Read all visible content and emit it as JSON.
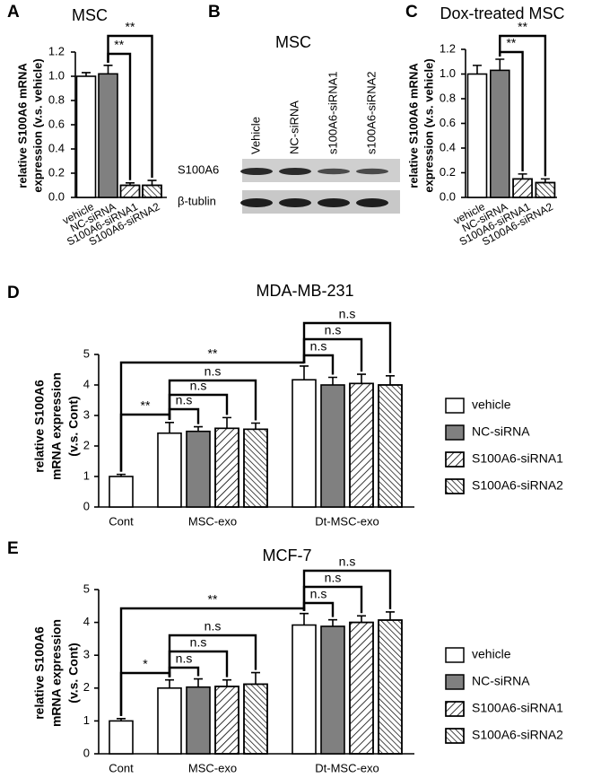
{
  "panel_b": {
    "panel": "B",
    "title": "MSC",
    "lanes": [
      "Vehicle",
      "NC-siRNA",
      "s100A6-siRNA1",
      "s100A6-siRNA2"
    ],
    "rows": [
      "S100A6",
      "β-tublin"
    ]
  },
  "chart_data": [
    {
      "panel": "A",
      "type": "bar",
      "title": "MSC",
      "ylabel": [
        "relative S100A6 mRNA",
        "expression (v.s. vehicle)"
      ],
      "categories": [
        "vehicle",
        "NC-siRNA",
        "S100A6-siRNA1",
        "S100A6-siRNA2"
      ],
      "values": [
        1.0,
        1.02,
        0.1,
        0.1
      ],
      "errors": [
        0.03,
        0.07,
        0.02,
        0.04
      ],
      "colors": [
        "#ffffff",
        "#808080",
        "#ffffff",
        "#ffffff"
      ],
      "hatches": [
        "none",
        "none",
        "forward",
        "backward"
      ],
      "ylim": [
        0,
        1.2
      ],
      "yticks": [
        {
          "value": 0,
          "label": "0.0"
        },
        0.2,
        0.4,
        0.6,
        0.8,
        {
          "value": 1,
          "label": "1.0"
        },
        1.2
      ],
      "annotations": [
        "**",
        "**"
      ]
    },
    {
      "panel": "C",
      "type": "bar",
      "title": "Dox-treated MSC",
      "ylabel": [
        "relative S100A6 mRNA",
        "expression (v.s. vehicle)"
      ],
      "categories": [
        "vehicle",
        "NC-siRNA",
        "S100A6-siRNA1",
        "S100A6-siRNA2"
      ],
      "values": [
        1.0,
        1.03,
        0.15,
        0.12
      ],
      "errors": [
        0.07,
        0.09,
        0.04,
        0.03
      ],
      "colors": [
        "#ffffff",
        "#808080",
        "#ffffff",
        "#ffffff"
      ],
      "hatches": [
        "none",
        "none",
        "forward",
        "backward"
      ],
      "ylim": [
        0,
        1.2
      ],
      "yticks": [
        {
          "value": 0,
          "label": "0.0"
        },
        0.2,
        0.4,
        0.6,
        0.8,
        {
          "value": 1,
          "label": "1.0"
        },
        1.2
      ],
      "annotations": [
        "**",
        "**"
      ]
    },
    {
      "panel": "D",
      "type": "grouped_bar",
      "title": "MDA-MB-231",
      "ylabel": [
        "relative S100A6",
        "mRNA  expression",
        "(v.s. Cont)"
      ],
      "categories": [
        "Cont",
        "MSC-exo",
        "Dt-MSC-exo"
      ],
      "series": [
        {
          "name": "vehicle",
          "color": "#ffffff",
          "hatch": "none",
          "values": [
            1.0,
            2.42,
            4.17
          ],
          "errors": [
            0.07,
            0.35,
            0.45
          ]
        },
        {
          "name": "NC-siRNA",
          "color": "#808080",
          "hatch": "none",
          "values": [
            null,
            2.48,
            4.0
          ],
          "errors": [
            null,
            0.15,
            0.25
          ]
        },
        {
          "name": "S100A6-siRNA1",
          "color": "#ffffff",
          "hatch": "forward",
          "values": [
            null,
            2.58,
            4.05
          ],
          "errors": [
            null,
            0.35,
            0.3
          ]
        },
        {
          "name": "S100A6-siRNA2",
          "color": "#ffffff",
          "hatch": "backward",
          "values": [
            null,
            2.55,
            4.0
          ],
          "errors": [
            null,
            0.2,
            0.3
          ]
        }
      ],
      "ylim": [
        0,
        5
      ],
      "yticks": [
        0,
        1,
        2,
        3,
        4,
        5
      ],
      "legend": "right",
      "annotations": [
        "**",
        "**",
        "n.s",
        "n.s",
        "n.s",
        "n.s",
        "n.s",
        "n.s"
      ]
    },
    {
      "panel": "E",
      "type": "grouped_bar",
      "title": "MCF-7",
      "ylabel": [
        "relative S100A6",
        "mRNA  expression",
        "(v.s. Cont)"
      ],
      "categories": [
        "Cont",
        "MSC-exo",
        "Dt-MSC-exo"
      ],
      "series": [
        {
          "name": "vehicle",
          "color": "#ffffff",
          "hatch": "none",
          "values": [
            1.0,
            2.0,
            3.92
          ],
          "errors": [
            0.07,
            0.25,
            0.35
          ]
        },
        {
          "name": "NC-siRNA",
          "color": "#808080",
          "hatch": "none",
          "values": [
            null,
            2.03,
            3.88
          ],
          "errors": [
            null,
            0.25,
            0.2
          ]
        },
        {
          "name": "S100A6-siRNA1",
          "color": "#ffffff",
          "hatch": "forward",
          "values": [
            null,
            2.05,
            4.0
          ],
          "errors": [
            null,
            0.2,
            0.2
          ]
        },
        {
          "name": "S100A6-siRNA2",
          "color": "#ffffff",
          "hatch": "backward",
          "values": [
            null,
            2.12,
            4.07
          ],
          "errors": [
            null,
            0.35,
            0.25
          ]
        }
      ],
      "ylim": [
        0,
        5
      ],
      "yticks": [
        0,
        1,
        2,
        3,
        4,
        5
      ],
      "legend": "right",
      "annotations": [
        "*",
        "**",
        "n.s",
        "n.s",
        "n.s",
        "n.s",
        "n.s",
        "n.s"
      ]
    }
  ]
}
